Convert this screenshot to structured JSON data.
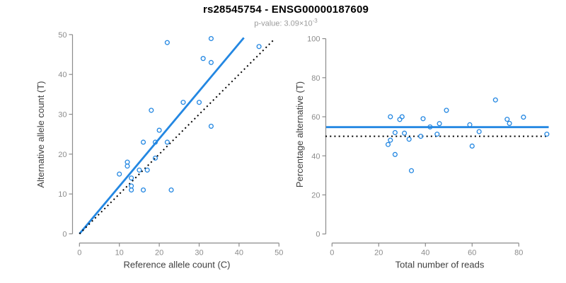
{
  "header": {
    "title": "rs28545754 - ENSG00000187609",
    "subtitle_text": "p-value: 3.09×10",
    "subtitle_exponent": "-3"
  },
  "colors": {
    "accent_blue": "#2387E2",
    "dotted_line": "#000000",
    "tick_label": "#8c8c8c",
    "axis_line": "#8c8c8c",
    "axis_title": "#404040",
    "subtitle_gray": "#9b9b9b"
  },
  "chart_data": [
    {
      "type": "scatter",
      "name": "left-plot",
      "xlabel": "Reference allele count (C)",
      "ylabel": "Alternative allele count (T)",
      "xlim": [
        0,
        50
      ],
      "ylim": [
        0,
        50
      ],
      "x_ticks": [
        0,
        10,
        20,
        30,
        40,
        50
      ],
      "y_ticks": [
        0,
        10,
        20,
        30,
        40,
        50
      ],
      "grid": false,
      "legend": "none",
      "points": [
        [
          10,
          15
        ],
        [
          12,
          17
        ],
        [
          12,
          18
        ],
        [
          13,
          14
        ],
        [
          15,
          16
        ],
        [
          13,
          11
        ],
        [
          13,
          12
        ],
        [
          16,
          11
        ],
        [
          17,
          16
        ],
        [
          23,
          11
        ],
        [
          19,
          19
        ],
        [
          16,
          23
        ],
        [
          19,
          23
        ],
        [
          20,
          26
        ],
        [
          22,
          23
        ],
        [
          18,
          31
        ],
        [
          26,
          33
        ],
        [
          33,
          27
        ],
        [
          30,
          33
        ],
        [
          22,
          48
        ],
        [
          31,
          44
        ],
        [
          33,
          43
        ],
        [
          33,
          49
        ],
        [
          45,
          47
        ]
      ],
      "lines": [
        {
          "name": "regression-line",
          "style": "solid",
          "color": "#2387E2",
          "x1": 0,
          "y1": 0,
          "x2": 41.2,
          "y2": 49.2
        },
        {
          "name": "identity-line",
          "style": "dotted",
          "color": "#000000",
          "x1": 0,
          "y1": 0,
          "x2": 48.6,
          "y2": 48.6
        }
      ]
    },
    {
      "type": "scatter",
      "name": "right-plot",
      "xlabel": "Total number of reads",
      "ylabel": "Percentage alternative (T)",
      "xlim": [
        0,
        95
      ],
      "ylim": [
        0,
        100
      ],
      "x_ticks": [
        0,
        20,
        40,
        60,
        80
      ],
      "y_ticks": [
        0,
        20,
        40,
        60,
        80,
        100
      ],
      "grid": false,
      "legend": "none",
      "points": [
        [
          25,
          60
        ],
        [
          29,
          58.6
        ],
        [
          30,
          60
        ],
        [
          27,
          51.9
        ],
        [
          31,
          51.6
        ],
        [
          24,
          45.8
        ],
        [
          25,
          48
        ],
        [
          27,
          40.7
        ],
        [
          33,
          48.5
        ],
        [
          34,
          32.4
        ],
        [
          38,
          50
        ],
        [
          39,
          59
        ],
        [
          42,
          54.8
        ],
        [
          46,
          56.5
        ],
        [
          45,
          51.1
        ],
        [
          49,
          63.3
        ],
        [
          59,
          55.9
        ],
        [
          60,
          45
        ],
        [
          63,
          52.4
        ],
        [
          70,
          68.6
        ],
        [
          75,
          58.7
        ],
        [
          76,
          56.6
        ],
        [
          82,
          59.8
        ],
        [
          92,
          51.1
        ]
      ],
      "lines": [
        {
          "name": "mean-percentage-line",
          "style": "solid",
          "color": "#2387E2",
          "x1": -2.5,
          "y1": 54.7,
          "x2": 92.8,
          "y2": 54.7
        },
        {
          "name": "fifty-percent-line",
          "style": "dotted",
          "color": "#000000",
          "x1": -2.8,
          "y1": 50,
          "x2": 93,
          "y2": 50
        }
      ]
    }
  ]
}
